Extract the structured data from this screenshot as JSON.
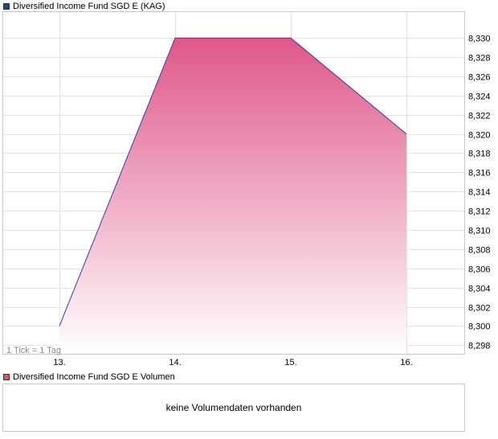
{
  "price_legend": {
    "label": "Diversified Income Fund SGD E (KAG)",
    "color": "#1f3f99"
  },
  "volume_legend": {
    "label": "Diversified Income Fund SGD E Volumen",
    "color": "#d9566a"
  },
  "tick_note": "1 Tick = 1 Tag",
  "volume_message": "keine Volumendaten vorhanden",
  "chart_data": {
    "type": "area",
    "categories": [
      "13.",
      "14.",
      "15.",
      "16."
    ],
    "series": [
      {
        "name": "Diversified Income Fund SGD E (KAG)",
        "values": [
          8.3,
          8.33,
          8.33,
          8.32
        ]
      }
    ],
    "ylim": [
      8.2971,
      8.3327
    ],
    "y_ticks": [
      "8,298",
      "8,300",
      "8,302",
      "8,304",
      "8,306",
      "8,308",
      "8,310",
      "8,312",
      "8,314",
      "8,316",
      "8,318",
      "8,320",
      "8,322",
      "8,324",
      "8,326",
      "8,328",
      "8,330"
    ],
    "y_axis_position": "right",
    "grid": true,
    "line_color": "#2a3fa6",
    "fill_top_color": "#e0578a",
    "fill_bottom_color": "#ffffff"
  }
}
